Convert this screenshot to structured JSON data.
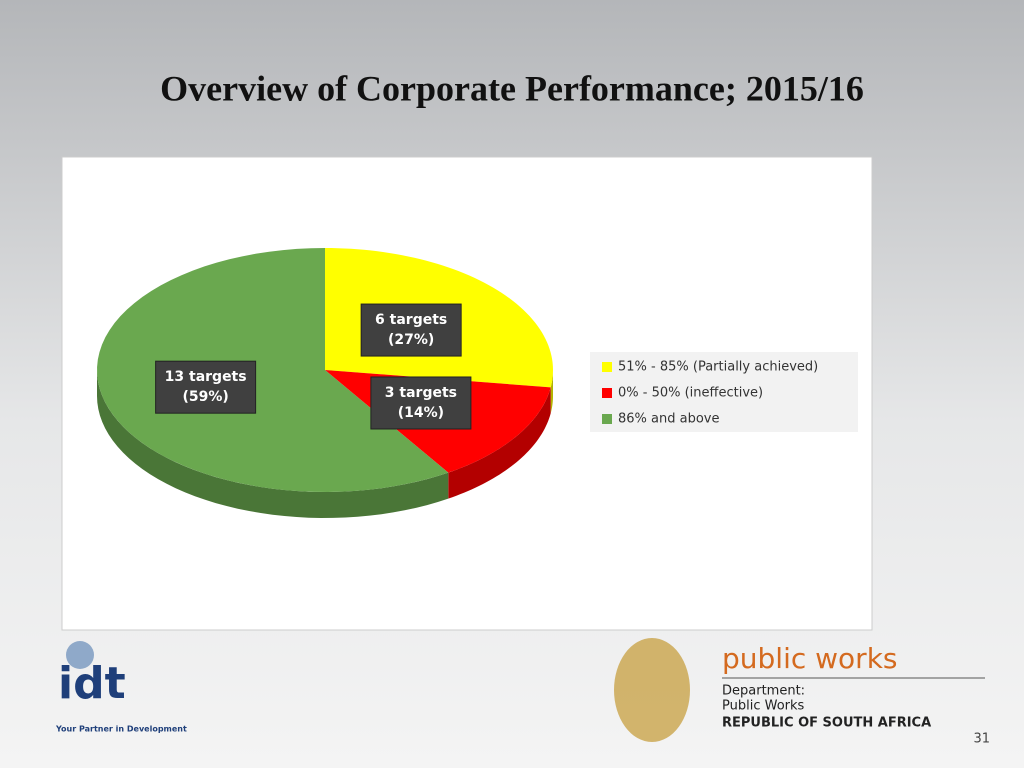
{
  "chart_data": {
    "type": "pie",
    "title": "Overview of Corporate Performance; 2015/16",
    "categories": [
      "51% - 85% (Partially achieved)",
      "0% - 50% (ineffective)",
      "86% and above"
    ],
    "values": [
      6,
      3,
      13
    ],
    "value_labels": [
      "6 targets",
      "3 targets",
      "13 targets"
    ],
    "percents": [
      27,
      14,
      59
    ],
    "percent_labels": [
      "(27%)",
      "(14%)",
      "(59%)"
    ],
    "colors": [
      "#ffff00",
      "#ff0000",
      "#6aa84f"
    ],
    "legend": "right"
  },
  "slide": {
    "page_number": "31",
    "idt_logo": {
      "name": "idt",
      "tagline": "Your Partner in Development"
    },
    "dpw_logo": {
      "name": "public works",
      "line1": "Department:",
      "line2": "Public Works",
      "line3": "REPUBLIC OF SOUTH AFRICA"
    }
  }
}
